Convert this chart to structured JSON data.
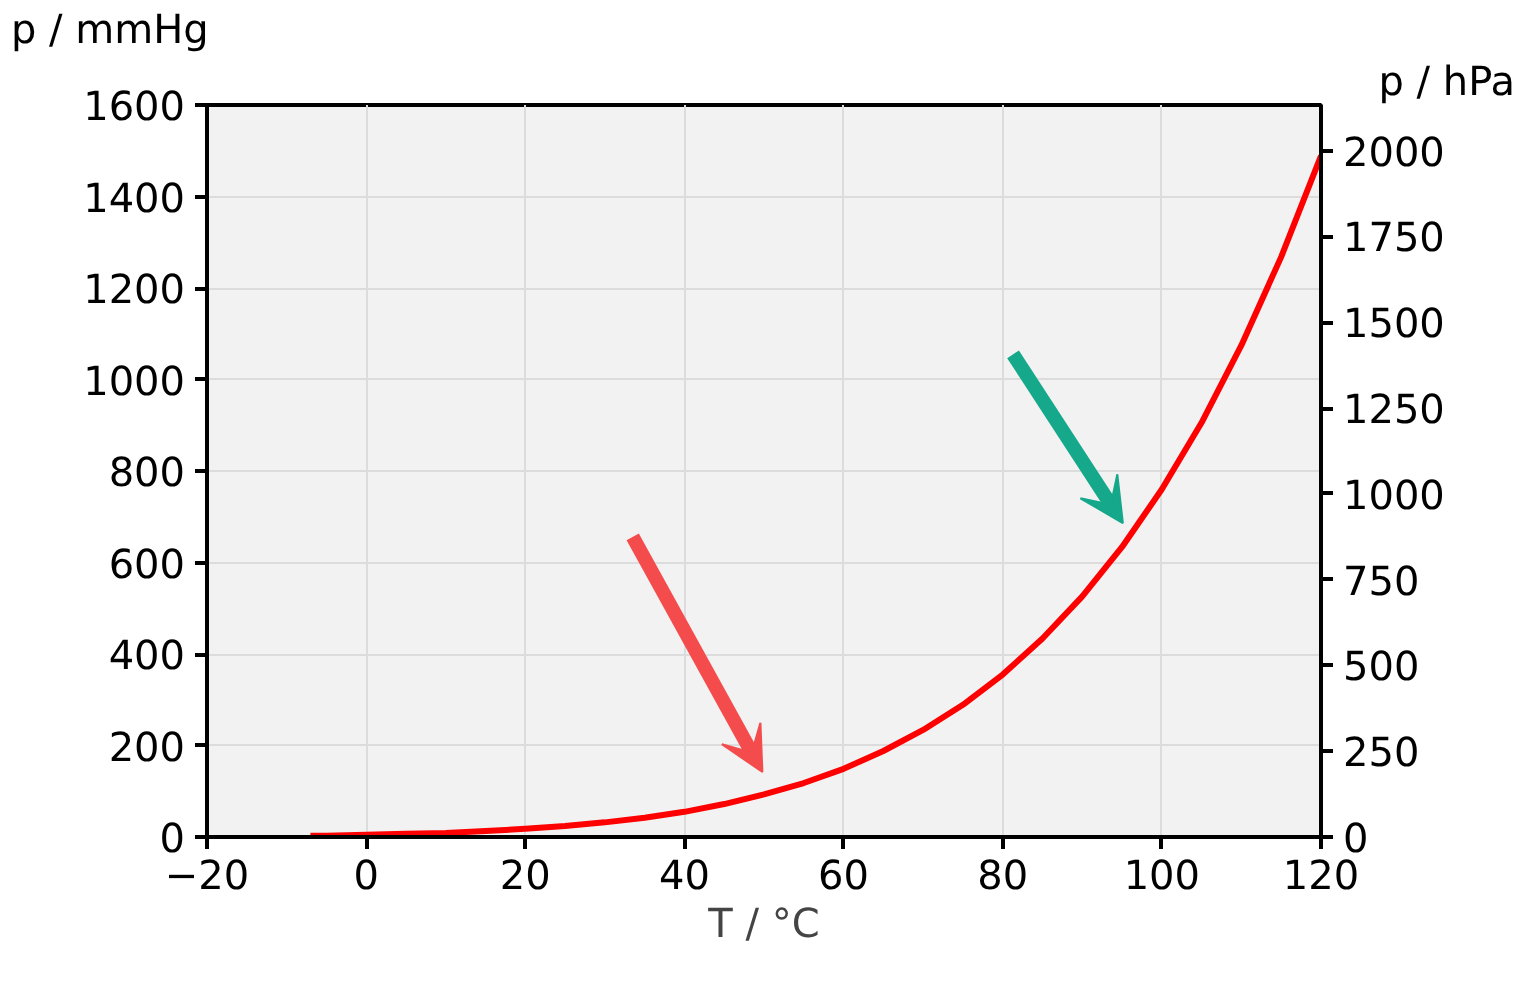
{
  "chart_data": {
    "type": "line",
    "xlabel": "T / °C",
    "ylabel": "p / mmHg",
    "y2label": "p / hPa",
    "x": [
      -7,
      -5,
      0,
      5,
      10,
      15,
      20,
      25,
      30,
      35,
      40,
      45,
      50,
      55,
      60,
      65,
      70,
      75,
      80,
      85,
      90,
      95,
      100,
      105,
      110,
      115,
      120
    ],
    "series": [
      {
        "color": "#ff0000",
        "values": [
          3,
          3,
          5,
          7,
          9,
          13,
          18,
          24,
          32,
          42,
          55,
          72,
          93,
          118,
          149,
          188,
          234,
          289,
          355,
          434,
          526,
          634,
          760,
          906,
          1075,
          1268,
          1489
        ]
      }
    ],
    "xlim": [
      -20,
      120
    ],
    "xticks": [
      -20,
      0,
      20,
      40,
      60,
      80,
      100,
      120
    ],
    "ylim": [
      0,
      1600
    ],
    "yticks": [
      0,
      200,
      400,
      600,
      800,
      1000,
      1200,
      1400,
      1600
    ],
    "y2lim": [
      0,
      2133
    ],
    "y2ticks": [
      0,
      250,
      500,
      750,
      1000,
      1250,
      1500,
      1750,
      2000
    ],
    "grid": true,
    "line_style": "solid",
    "marker": "none"
  }
}
